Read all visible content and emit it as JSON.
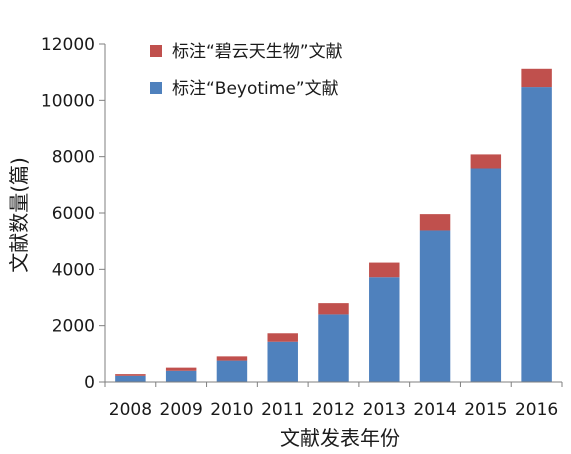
{
  "chart_data": {
    "type": "bar",
    "stacked": true,
    "categories": [
      "2008",
      "2009",
      "2010",
      "2011",
      "2012",
      "2013",
      "2014",
      "2015",
      "2016"
    ],
    "series": [
      {
        "name": "标注“Beyotime”文献",
        "color": "#4f81bd",
        "values": [
          220,
          400,
          760,
          1430,
          2400,
          3720,
          5380,
          7580,
          10470
        ]
      },
      {
        "name": "标注“碧云天生物”文献",
        "color": "#c0504d",
        "values": [
          60,
          110,
          150,
          300,
          400,
          520,
          580,
          500,
          650
        ]
      }
    ],
    "xlabel": "文献发表年份",
    "ylabel": "文献数量(篇)",
    "ylim": [
      0,
      12000
    ],
    "yticks": [
      "0",
      "2000",
      "4000",
      "6000",
      "8000",
      "10000",
      "12000"
    ],
    "grid": false,
    "legend_position": "top-left"
  }
}
